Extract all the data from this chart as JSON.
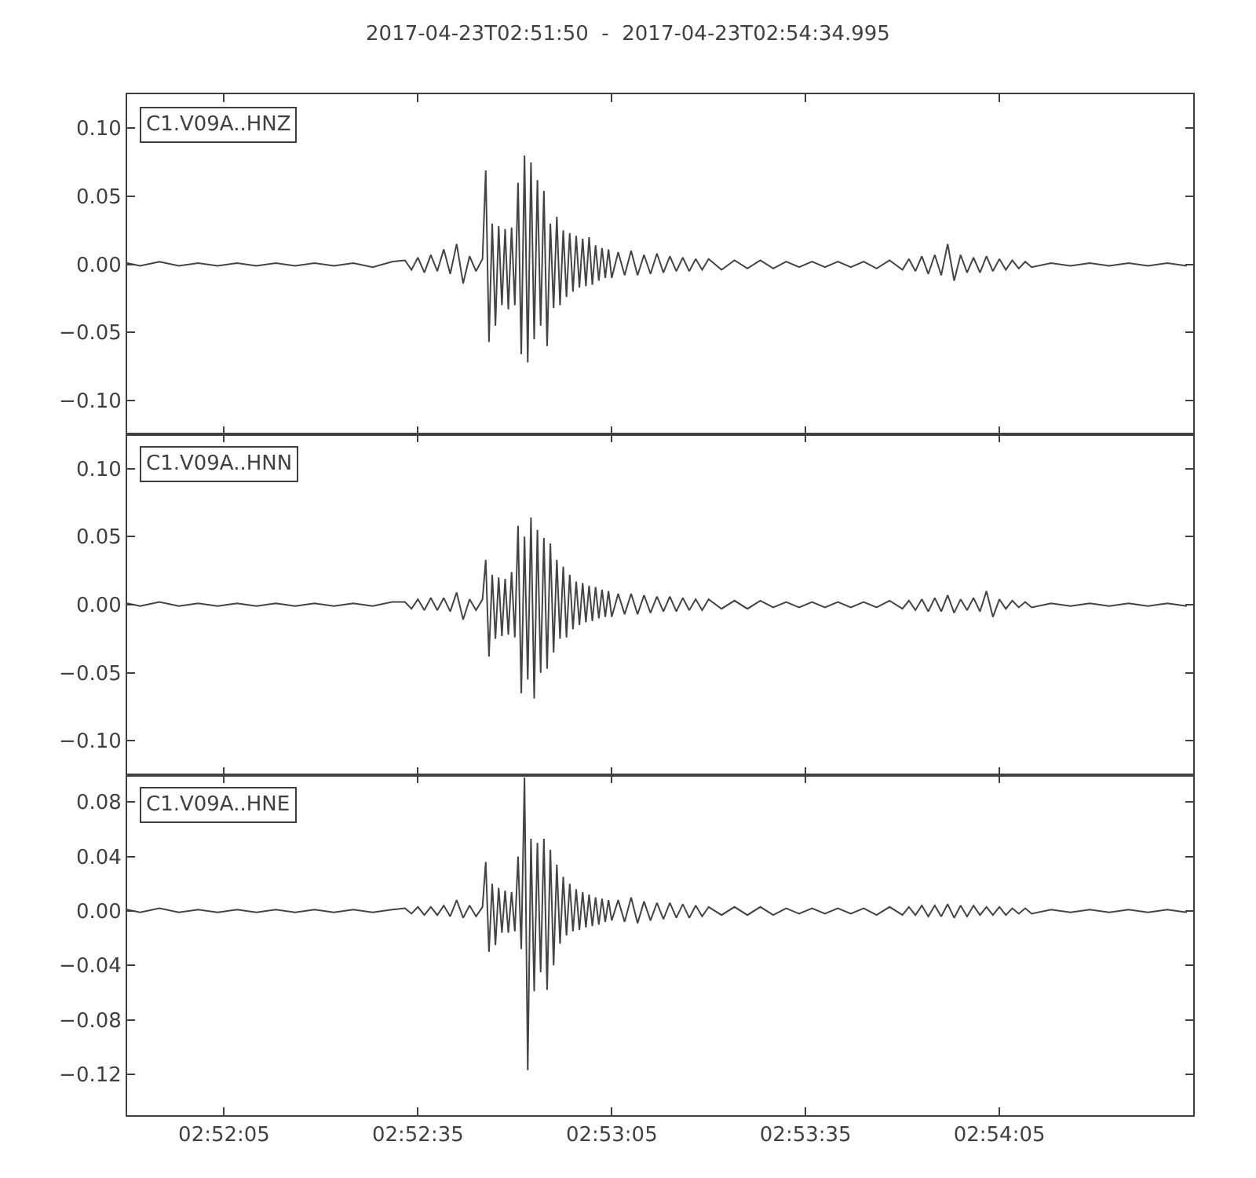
{
  "chart_data": [
    {
      "type": "line",
      "title": "2017-04-23T02:51:50  -  2017-04-23T02:54:34.995",
      "annotations": [
        "C1.V09A..HNZ"
      ],
      "color": "#444444",
      "tick_labels": "y",
      "xlim": [
        "2017-04-23T02:51:50",
        "2017-04-23T02:54:35"
      ],
      "xticks": [
        {
          "value": "2017-04-23T02:52:05",
          "label": "02:52:05"
        },
        {
          "value": "2017-04-23T02:52:35",
          "label": "02:52:35"
        },
        {
          "value": "2017-04-23T02:53:05",
          "label": "02:53:05"
        },
        {
          "value": "2017-04-23T02:53:35",
          "label": "02:53:35"
        },
        {
          "value": "2017-04-23T02:54:05",
          "label": "02:54:05"
        }
      ],
      "ylim": [
        -0.125,
        0.125
      ],
      "yticks": [
        {
          "value": -0.1,
          "label": "−0.10"
        },
        {
          "value": -0.05,
          "label": "−0.05"
        },
        {
          "value": 0,
          "label": "0.00"
        },
        {
          "value": 0.05,
          "label": "0.05"
        },
        {
          "value": 0.1,
          "label": "0.10"
        }
      ],
      "x": [
        "2017-04-23T02:51:50",
        "2017-04-23T02:51:52",
        "2017-04-23T02:51:55",
        "2017-04-23T02:51:58",
        "2017-04-23T02:52:01",
        "2017-04-23T02:52:04",
        "2017-04-23T02:52:07",
        "2017-04-23T02:52:10",
        "2017-04-23T02:52:13",
        "2017-04-23T02:52:16",
        "2017-04-23T02:52:19",
        "2017-04-23T02:52:22",
        "2017-04-23T02:52:25",
        "2017-04-23T02:52:28",
        "2017-04-23T02:52:31",
        "2017-04-23T02:52:33",
        "2017-04-23T02:52:34",
        "2017-04-23T02:52:35",
        "2017-04-23T02:52:36",
        "2017-04-23T02:52:37",
        "2017-04-23T02:52:38",
        "2017-04-23T02:52:39",
        "2017-04-23T02:52:40",
        "2017-04-23T02:52:41",
        "2017-04-23T02:52:42",
        "2017-04-23T02:52:43",
        "2017-04-23T02:52:44",
        "2017-04-23T02:52:45",
        "2017-04-23T02:52:45.5",
        "2017-04-23T02:52:46",
        "2017-04-23T02:52:46.5",
        "2017-04-23T02:52:47",
        "2017-04-23T02:52:47.5",
        "2017-04-23T02:52:48",
        "2017-04-23T02:52:48.5",
        "2017-04-23T02:52:49",
        "2017-04-23T02:52:49.5",
        "2017-04-23T02:52:50",
        "2017-04-23T02:52:50.5",
        "2017-04-23T02:52:51",
        "2017-04-23T02:52:51.5",
        "2017-04-23T02:52:52",
        "2017-04-23T02:52:52.5",
        "2017-04-23T02:52:53",
        "2017-04-23T02:52:53.5",
        "2017-04-23T02:52:54",
        "2017-04-23T02:52:54.5",
        "2017-04-23T02:52:55",
        "2017-04-23T02:52:55.5",
        "2017-04-23T02:52:56",
        "2017-04-23T02:52:56.5",
        "2017-04-23T02:52:57",
        "2017-04-23T02:52:57.5",
        "2017-04-23T02:52:58",
        "2017-04-23T02:52:58.5",
        "2017-04-23T02:52:59",
        "2017-04-23T02:52:59.5",
        "2017-04-23T02:53:00",
        "2017-04-23T02:53:00.5",
        "2017-04-23T02:53:01",
        "2017-04-23T02:53:01.5",
        "2017-04-23T02:53:02",
        "2017-04-23T02:53:02.5",
        "2017-04-23T02:53:03",
        "2017-04-23T02:53:03.5",
        "2017-04-23T02:53:04",
        "2017-04-23T02:53:04.5",
        "2017-04-23T02:53:05",
        "2017-04-23T02:53:06",
        "2017-04-23T02:53:07",
        "2017-04-23T02:53:08",
        "2017-04-23T02:53:09",
        "2017-04-23T02:53:10",
        "2017-04-23T02:53:11",
        "2017-04-23T02:53:12",
        "2017-04-23T02:53:13",
        "2017-04-23T02:53:14",
        "2017-04-23T02:53:15",
        "2017-04-23T02:53:16",
        "2017-04-23T02:53:17",
        "2017-04-23T02:53:18",
        "2017-04-23T02:53:19",
        "2017-04-23T02:53:20",
        "2017-04-23T02:53:22",
        "2017-04-23T02:53:24",
        "2017-04-23T02:53:26",
        "2017-04-23T02:53:28",
        "2017-04-23T02:53:30",
        "2017-04-23T02:53:32",
        "2017-04-23T02:53:34",
        "2017-04-23T02:53:36",
        "2017-04-23T02:53:38",
        "2017-04-23T02:53:40",
        "2017-04-23T02:53:42",
        "2017-04-23T02:53:44",
        "2017-04-23T02:53:46",
        "2017-04-23T02:53:48",
        "2017-04-23T02:53:50",
        "2017-04-23T02:53:51",
        "2017-04-23T02:53:52",
        "2017-04-23T02:53:53",
        "2017-04-23T02:53:54",
        "2017-04-23T02:53:55",
        "2017-04-23T02:53:56",
        "2017-04-23T02:53:57",
        "2017-04-23T02:53:58",
        "2017-04-23T02:53:59",
        "2017-04-23T02:54:00",
        "2017-04-23T02:54:01",
        "2017-04-23T02:54:02",
        "2017-04-23T02:54:03",
        "2017-04-23T02:54:04",
        "2017-04-23T02:54:05",
        "2017-04-23T02:54:06",
        "2017-04-23T02:54:07",
        "2017-04-23T02:54:08",
        "2017-04-23T02:54:09",
        "2017-04-23T02:54:10",
        "2017-04-23T02:54:13",
        "2017-04-23T02:54:16",
        "2017-04-23T02:54:19",
        "2017-04-23T02:54:22",
        "2017-04-23T02:54:25",
        "2017-04-23T02:54:28",
        "2017-04-23T02:54:31",
        "2017-04-23T02:54:34"
      ],
      "values": [
        0.001,
        -0.001,
        0.002,
        -0.001,
        0.001,
        -0.001,
        0.001,
        -0.001,
        0.001,
        -0.001,
        0.001,
        -0.001,
        0.001,
        -0.002,
        0.002,
        0.003,
        -0.004,
        0.005,
        -0.006,
        0.007,
        -0.005,
        0.011,
        -0.007,
        0.015,
        -0.014,
        0.006,
        -0.005,
        0.004,
        0.069,
        -0.057,
        0.03,
        -0.045,
        0.028,
        -0.03,
        0.026,
        -0.033,
        0.027,
        -0.03,
        0.06,
        -0.066,
        0.08,
        -0.072,
        0.075,
        -0.055,
        0.062,
        -0.045,
        0.054,
        -0.06,
        0.03,
        -0.032,
        0.035,
        -0.03,
        0.025,
        -0.024,
        0.023,
        -0.02,
        0.021,
        -0.017,
        0.019,
        -0.016,
        0.02,
        -0.015,
        0.014,
        -0.012,
        0.012,
        -0.01,
        0.011,
        -0.01,
        0.009,
        -0.008,
        0.01,
        -0.008,
        0.007,
        -0.007,
        0.008,
        -0.006,
        0.006,
        -0.005,
        0.005,
        -0.005,
        0.004,
        -0.004,
        0.004,
        -0.004,
        0.003,
        -0.003,
        0.003,
        -0.003,
        0.002,
        -0.002,
        0.002,
        -0.002,
        0.002,
        -0.002,
        0.002,
        -0.003,
        0.003,
        -0.004,
        0.004,
        -0.005,
        0.006,
        -0.007,
        0.007,
        -0.008,
        0.015,
        -0.012,
        0.007,
        -0.006,
        0.005,
        -0.006,
        0.006,
        -0.005,
        0.004,
        -0.004,
        0.003,
        -0.003,
        0.002,
        -0.002,
        0.001,
        -0.001,
        0.001,
        -0.001,
        0.001,
        -0.001,
        0.001,
        -0.001
      ]
    },
    {
      "type": "line",
      "annotations": [
        "C1.V09A..HNN"
      ],
      "color": "#444444",
      "tick_labels": "y",
      "xlim": [
        "2017-04-23T02:51:50",
        "2017-04-23T02:54:35"
      ],
      "xticks": [
        {
          "value": "2017-04-23T02:52:05",
          "label": "02:52:05"
        },
        {
          "value": "2017-04-23T02:52:35",
          "label": "02:52:35"
        },
        {
          "value": "2017-04-23T02:53:05",
          "label": "02:53:05"
        },
        {
          "value": "2017-04-23T02:53:35",
          "label": "02:53:35"
        },
        {
          "value": "2017-04-23T02:54:05",
          "label": "02:54:05"
        }
      ],
      "ylim": [
        -0.125,
        0.125
      ],
      "yticks": [
        {
          "value": -0.1,
          "label": "−0.10"
        },
        {
          "value": -0.05,
          "label": "−0.05"
        },
        {
          "value": 0,
          "label": "0.00"
        },
        {
          "value": 0.05,
          "label": "0.05"
        },
        {
          "value": 0.1,
          "label": "0.10"
        }
      ],
      "x": [
        "2017-04-23T02:51:50",
        "2017-04-23T02:51:52",
        "2017-04-23T02:51:55",
        "2017-04-23T02:51:58",
        "2017-04-23T02:52:01",
        "2017-04-23T02:52:04",
        "2017-04-23T02:52:07",
        "2017-04-23T02:52:10",
        "2017-04-23T02:52:13",
        "2017-04-23T02:52:16",
        "2017-04-23T02:52:19",
        "2017-04-23T02:52:22",
        "2017-04-23T02:52:25",
        "2017-04-23T02:52:28",
        "2017-04-23T02:52:31",
        "2017-04-23T02:52:33",
        "2017-04-23T02:52:34",
        "2017-04-23T02:52:35",
        "2017-04-23T02:52:36",
        "2017-04-23T02:52:37",
        "2017-04-23T02:52:38",
        "2017-04-23T02:52:39",
        "2017-04-23T02:52:40",
        "2017-04-23T02:52:41",
        "2017-04-23T02:52:42",
        "2017-04-23T02:52:43",
        "2017-04-23T02:52:44",
        "2017-04-23T02:52:45",
        "2017-04-23T02:52:45.5",
        "2017-04-23T02:52:46",
        "2017-04-23T02:52:46.5",
        "2017-04-23T02:52:47",
        "2017-04-23T02:52:47.5",
        "2017-04-23T02:52:48",
        "2017-04-23T02:52:48.5",
        "2017-04-23T02:52:49",
        "2017-04-23T02:52:49.5",
        "2017-04-23T02:52:50",
        "2017-04-23T02:52:50.5",
        "2017-04-23T02:52:51",
        "2017-04-23T02:52:51.5",
        "2017-04-23T02:52:52",
        "2017-04-23T02:52:52.5",
        "2017-04-23T02:52:53",
        "2017-04-23T02:52:53.5",
        "2017-04-23T02:52:54",
        "2017-04-23T02:52:54.5",
        "2017-04-23T02:52:55",
        "2017-04-23T02:52:55.5",
        "2017-04-23T02:52:56",
        "2017-04-23T02:52:56.5",
        "2017-04-23T02:52:57",
        "2017-04-23T02:52:57.5",
        "2017-04-23T02:52:58",
        "2017-04-23T02:52:58.5",
        "2017-04-23T02:52:59",
        "2017-04-23T02:52:59.5",
        "2017-04-23T02:53:00",
        "2017-04-23T02:53:00.5",
        "2017-04-23T02:53:01",
        "2017-04-23T02:53:01.5",
        "2017-04-23T02:53:02",
        "2017-04-23T02:53:02.5",
        "2017-04-23T02:53:03",
        "2017-04-23T02:53:03.5",
        "2017-04-23T02:53:04",
        "2017-04-23T02:53:04.5",
        "2017-04-23T02:53:05",
        "2017-04-23T02:53:06",
        "2017-04-23T02:53:07",
        "2017-04-23T02:53:08",
        "2017-04-23T02:53:09",
        "2017-04-23T02:53:10",
        "2017-04-23T02:53:11",
        "2017-04-23T02:53:12",
        "2017-04-23T02:53:13",
        "2017-04-23T02:53:14",
        "2017-04-23T02:53:15",
        "2017-04-23T02:53:16",
        "2017-04-23T02:53:17",
        "2017-04-23T02:53:18",
        "2017-04-23T02:53:19",
        "2017-04-23T02:53:20",
        "2017-04-23T02:53:22",
        "2017-04-23T02:53:24",
        "2017-04-23T02:53:26",
        "2017-04-23T02:53:28",
        "2017-04-23T02:53:30",
        "2017-04-23T02:53:32",
        "2017-04-23T02:53:34",
        "2017-04-23T02:53:36",
        "2017-04-23T02:53:38",
        "2017-04-23T02:53:40",
        "2017-04-23T02:53:42",
        "2017-04-23T02:53:44",
        "2017-04-23T02:53:46",
        "2017-04-23T02:53:48",
        "2017-04-23T02:53:50",
        "2017-04-23T02:53:51",
        "2017-04-23T02:53:52",
        "2017-04-23T02:53:53",
        "2017-04-23T02:53:54",
        "2017-04-23T02:53:55",
        "2017-04-23T02:53:56",
        "2017-04-23T02:53:57",
        "2017-04-23T02:53:58",
        "2017-04-23T02:53:59",
        "2017-04-23T02:54:00",
        "2017-04-23T02:54:01",
        "2017-04-23T02:54:02",
        "2017-04-23T02:54:03",
        "2017-04-23T02:54:04",
        "2017-04-23T02:54:05",
        "2017-04-23T02:54:06",
        "2017-04-23T02:54:07",
        "2017-04-23T02:54:08",
        "2017-04-23T02:54:09",
        "2017-04-23T02:54:10",
        "2017-04-23T02:54:13",
        "2017-04-23T02:54:16",
        "2017-04-23T02:54:19",
        "2017-04-23T02:54:22",
        "2017-04-23T02:54:25",
        "2017-04-23T02:54:28",
        "2017-04-23T02:54:31",
        "2017-04-23T02:54:34"
      ],
      "values": [
        0.001,
        -0.001,
        0.002,
        -0.001,
        0.001,
        -0.001,
        0.001,
        -0.001,
        0.001,
        -0.001,
        0.001,
        -0.001,
        0.001,
        -0.001,
        0.002,
        0.002,
        -0.003,
        0.004,
        -0.004,
        0.005,
        -0.004,
        0.005,
        -0.005,
        0.009,
        -0.011,
        0.004,
        -0.004,
        0.004,
        0.033,
        -0.038,
        0.022,
        -0.025,
        0.02,
        -0.023,
        0.019,
        -0.022,
        0.024,
        -0.024,
        0.058,
        -0.065,
        0.05,
        -0.055,
        0.064,
        -0.069,
        0.055,
        -0.05,
        0.049,
        -0.047,
        0.045,
        -0.035,
        0.033,
        -0.025,
        0.028,
        -0.024,
        0.022,
        -0.018,
        0.017,
        -0.015,
        0.016,
        -0.013,
        0.014,
        -0.012,
        0.013,
        -0.01,
        0.011,
        -0.009,
        0.01,
        -0.009,
        0.008,
        -0.007,
        0.008,
        -0.007,
        0.007,
        -0.006,
        0.006,
        -0.005,
        0.006,
        -0.005,
        0.005,
        -0.004,
        0.004,
        -0.004,
        0.004,
        -0.003,
        0.003,
        -0.003,
        0.003,
        -0.002,
        0.002,
        -0.002,
        0.002,
        -0.002,
        0.002,
        -0.002,
        0.002,
        -0.002,
        0.003,
        -0.003,
        0.003,
        -0.004,
        0.004,
        -0.005,
        0.005,
        -0.005,
        0.007,
        -0.006,
        0.004,
        -0.004,
        0.005,
        -0.005,
        0.01,
        -0.009,
        0.004,
        -0.003,
        0.003,
        -0.002,
        0.002,
        -0.002,
        0.001,
        -0.001,
        0.001,
        -0.001,
        0.001,
        -0.001,
        0.001,
        -0.001
      ]
    },
    {
      "type": "line",
      "annotations": [
        "C1.V09A..HNE"
      ],
      "color": "#444444",
      "xlim": [
        "2017-04-23T02:51:50",
        "2017-04-23T02:54:35"
      ],
      "xticks": [
        {
          "value": "2017-04-23T02:52:05",
          "label": "02:52:05"
        },
        {
          "value": "2017-04-23T02:52:35",
          "label": "02:52:35"
        },
        {
          "value": "2017-04-23T02:53:05",
          "label": "02:53:05"
        },
        {
          "value": "2017-04-23T02:53:35",
          "label": "02:53:35"
        },
        {
          "value": "2017-04-23T02:54:05",
          "label": "02:54:05"
        }
      ],
      "ylim": [
        -0.15,
        0.1
      ],
      "yticks": [
        {
          "value": -0.12,
          "label": "−0.12"
        },
        {
          "value": -0.08,
          "label": "−0.08"
        },
        {
          "value": -0.04,
          "label": "−0.04"
        },
        {
          "value": 0,
          "label": "0.00"
        },
        {
          "value": 0.04,
          "label": "0.04"
        },
        {
          "value": 0.08,
          "label": "0.08"
        }
      ],
      "x": [
        "2017-04-23T02:51:50",
        "2017-04-23T02:51:52",
        "2017-04-23T02:51:55",
        "2017-04-23T02:51:58",
        "2017-04-23T02:52:01",
        "2017-04-23T02:52:04",
        "2017-04-23T02:52:07",
        "2017-04-23T02:52:10",
        "2017-04-23T02:52:13",
        "2017-04-23T02:52:16",
        "2017-04-23T02:52:19",
        "2017-04-23T02:52:22",
        "2017-04-23T02:52:25",
        "2017-04-23T02:52:28",
        "2017-04-23T02:52:31",
        "2017-04-23T02:52:33",
        "2017-04-23T02:52:34",
        "2017-04-23T02:52:35",
        "2017-04-23T02:52:36",
        "2017-04-23T02:52:37",
        "2017-04-23T02:52:38",
        "2017-04-23T02:52:39",
        "2017-04-23T02:52:40",
        "2017-04-23T02:52:41",
        "2017-04-23T02:52:42",
        "2017-04-23T02:52:43",
        "2017-04-23T02:52:44",
        "2017-04-23T02:52:45",
        "2017-04-23T02:52:45.5",
        "2017-04-23T02:52:46",
        "2017-04-23T02:52:46.5",
        "2017-04-23T02:52:47",
        "2017-04-23T02:52:47.5",
        "2017-04-23T02:52:48",
        "2017-04-23T02:52:48.5",
        "2017-04-23T02:52:49",
        "2017-04-23T02:52:49.5",
        "2017-04-23T02:52:50",
        "2017-04-23T02:52:50.5",
        "2017-04-23T02:52:51",
        "2017-04-23T02:52:51.5",
        "2017-04-23T02:52:52",
        "2017-04-23T02:52:52.5",
        "2017-04-23T02:52:53",
        "2017-04-23T02:52:53.5",
        "2017-04-23T02:52:54",
        "2017-04-23T02:52:54.5",
        "2017-04-23T02:52:55",
        "2017-04-23T02:52:55.5",
        "2017-04-23T02:52:56",
        "2017-04-23T02:52:56.5",
        "2017-04-23T02:52:57",
        "2017-04-23T02:52:57.5",
        "2017-04-23T02:52:58",
        "2017-04-23T02:52:58.5",
        "2017-04-23T02:52:59",
        "2017-04-23T02:52:59.5",
        "2017-04-23T02:53:00",
        "2017-04-23T02:53:00.5",
        "2017-04-23T02:53:01",
        "2017-04-23T02:53:01.5",
        "2017-04-23T02:53:02",
        "2017-04-23T02:53:02.5",
        "2017-04-23T02:53:03",
        "2017-04-23T02:53:03.5",
        "2017-04-23T02:53:04",
        "2017-04-23T02:53:04.5",
        "2017-04-23T02:53:05",
        "2017-04-23T02:53:06",
        "2017-04-23T02:53:07",
        "2017-04-23T02:53:08",
        "2017-04-23T02:53:09",
        "2017-04-23T02:53:10",
        "2017-04-23T02:53:11",
        "2017-04-23T02:53:12",
        "2017-04-23T02:53:13",
        "2017-04-23T02:53:14",
        "2017-04-23T02:53:15",
        "2017-04-23T02:53:16",
        "2017-04-23T02:53:17",
        "2017-04-23T02:53:18",
        "2017-04-23T02:53:19",
        "2017-04-23T02:53:20",
        "2017-04-23T02:53:22",
        "2017-04-23T02:53:24",
        "2017-04-23T02:53:26",
        "2017-04-23T02:53:28",
        "2017-04-23T02:53:30",
        "2017-04-23T02:53:32",
        "2017-04-23T02:53:34",
        "2017-04-23T02:53:36",
        "2017-04-23T02:53:38",
        "2017-04-23T02:53:40",
        "2017-04-23T02:53:42",
        "2017-04-23T02:53:44",
        "2017-04-23T02:53:46",
        "2017-04-23T02:53:48",
        "2017-04-23T02:53:50",
        "2017-04-23T02:53:51",
        "2017-04-23T02:53:52",
        "2017-04-23T02:53:53",
        "2017-04-23T02:53:54",
        "2017-04-23T02:53:55",
        "2017-04-23T02:53:56",
        "2017-04-23T02:53:57",
        "2017-04-23T02:53:58",
        "2017-04-23T02:53:59",
        "2017-04-23T02:54:00",
        "2017-04-23T02:54:01",
        "2017-04-23T02:54:02",
        "2017-04-23T02:54:03",
        "2017-04-23T02:54:04",
        "2017-04-23T02:54:05",
        "2017-04-23T02:54:06",
        "2017-04-23T02:54:07",
        "2017-04-23T02:54:08",
        "2017-04-23T02:54:09",
        "2017-04-23T02:54:10",
        "2017-04-23T02:54:13",
        "2017-04-23T02:54:16",
        "2017-04-23T02:54:19",
        "2017-04-23T02:54:22",
        "2017-04-23T02:54:25",
        "2017-04-23T02:54:28",
        "2017-04-23T02:54:31",
        "2017-04-23T02:54:34"
      ],
      "values": [
        0.001,
        -0.001,
        0.002,
        -0.001,
        0.001,
        -0.001,
        0.001,
        -0.001,
        0.001,
        -0.001,
        0.001,
        -0.001,
        0.001,
        -0.001,
        0.001,
        0.002,
        -0.002,
        0.003,
        -0.003,
        0.003,
        -0.003,
        0.004,
        -0.004,
        0.008,
        -0.005,
        0.004,
        -0.004,
        0.003,
        0.036,
        -0.03,
        0.02,
        -0.025,
        0.017,
        -0.016,
        0.015,
        -0.016,
        0.014,
        -0.015,
        0.04,
        -0.028,
        0.098,
        -0.117,
        0.053,
        -0.059,
        0.05,
        -0.045,
        0.053,
        -0.058,
        0.045,
        -0.04,
        0.034,
        -0.024,
        0.025,
        -0.018,
        0.02,
        -0.015,
        0.016,
        -0.014,
        0.014,
        -0.012,
        0.012,
        -0.011,
        0.01,
        -0.01,
        0.009,
        -0.008,
        0.008,
        -0.007,
        0.008,
        -0.008,
        0.01,
        -0.009,
        0.007,
        -0.007,
        0.006,
        -0.006,
        0.006,
        -0.005,
        0.005,
        -0.005,
        0.004,
        -0.004,
        0.003,
        -0.003,
        0.003,
        -0.003,
        0.003,
        -0.003,
        0.002,
        -0.002,
        0.002,
        -0.002,
        0.002,
        -0.002,
        0.002,
        -0.003,
        0.003,
        -0.003,
        0.003,
        -0.003,
        0.004,
        -0.004,
        0.004,
        -0.004,
        0.005,
        -0.005,
        0.004,
        -0.004,
        0.004,
        -0.003,
        0.003,
        -0.003,
        0.003,
        -0.003,
        0.002,
        -0.002,
        0.002,
        -0.002,
        0.001,
        -0.001,
        0.001,
        -0.001,
        0.001,
        -0.001,
        0.001,
        -0.001
      ]
    }
  ]
}
